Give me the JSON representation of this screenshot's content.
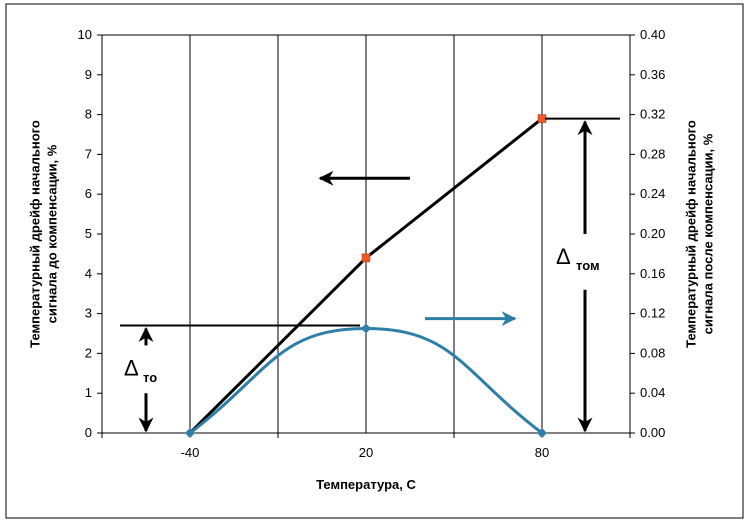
{
  "chart_data": {
    "type": "line",
    "xlabel": "Температура, С",
    "y_left_label_lines": [
      "Температурный дрейф начального",
      "сигнала до компенсации, %"
    ],
    "y_right_label_lines": [
      "Температурный дрейф начального",
      "сигнала после компенсации, %"
    ],
    "x_categories": [
      "-40",
      "20",
      "80"
    ],
    "y_left_ticks": [
      "0",
      "1",
      "2",
      "3",
      "4",
      "5",
      "6",
      "7",
      "8",
      "9",
      "10"
    ],
    "y_right_ticks": [
      "0.00",
      "0.04",
      "0.08",
      "0.12",
      "0.16",
      "0.20",
      "0.24",
      "0.28",
      "0.32",
      "0.36",
      "0.40"
    ],
    "y_left_range": [
      0,
      10
    ],
    "y_right_range": [
      0,
      0.4
    ],
    "grid": "vertical",
    "series": [
      {
        "axis": "left",
        "color": "#000000",
        "marker_color": "#f05a28",
        "x": [
          -40,
          20,
          80
        ],
        "y": [
          0,
          4.4,
          7.9
        ]
      },
      {
        "axis": "right",
        "color": "#2e7fa8",
        "marker_color": "#2e7fa8",
        "x": [
          -40,
          20,
          80
        ],
        "y": [
          0.0,
          0.105,
          0.0
        ]
      }
    ],
    "annotations": {
      "delta_left": {
        "symbol": "Δ",
        "sub": "то",
        "value_top": 2.7
      },
      "delta_right": {
        "symbol": "Δ",
        "sub": "том",
        "value_top": 7.9
      },
      "arrow_left_color": "#000000",
      "arrow_right_color": "#2e7fa8"
    }
  }
}
